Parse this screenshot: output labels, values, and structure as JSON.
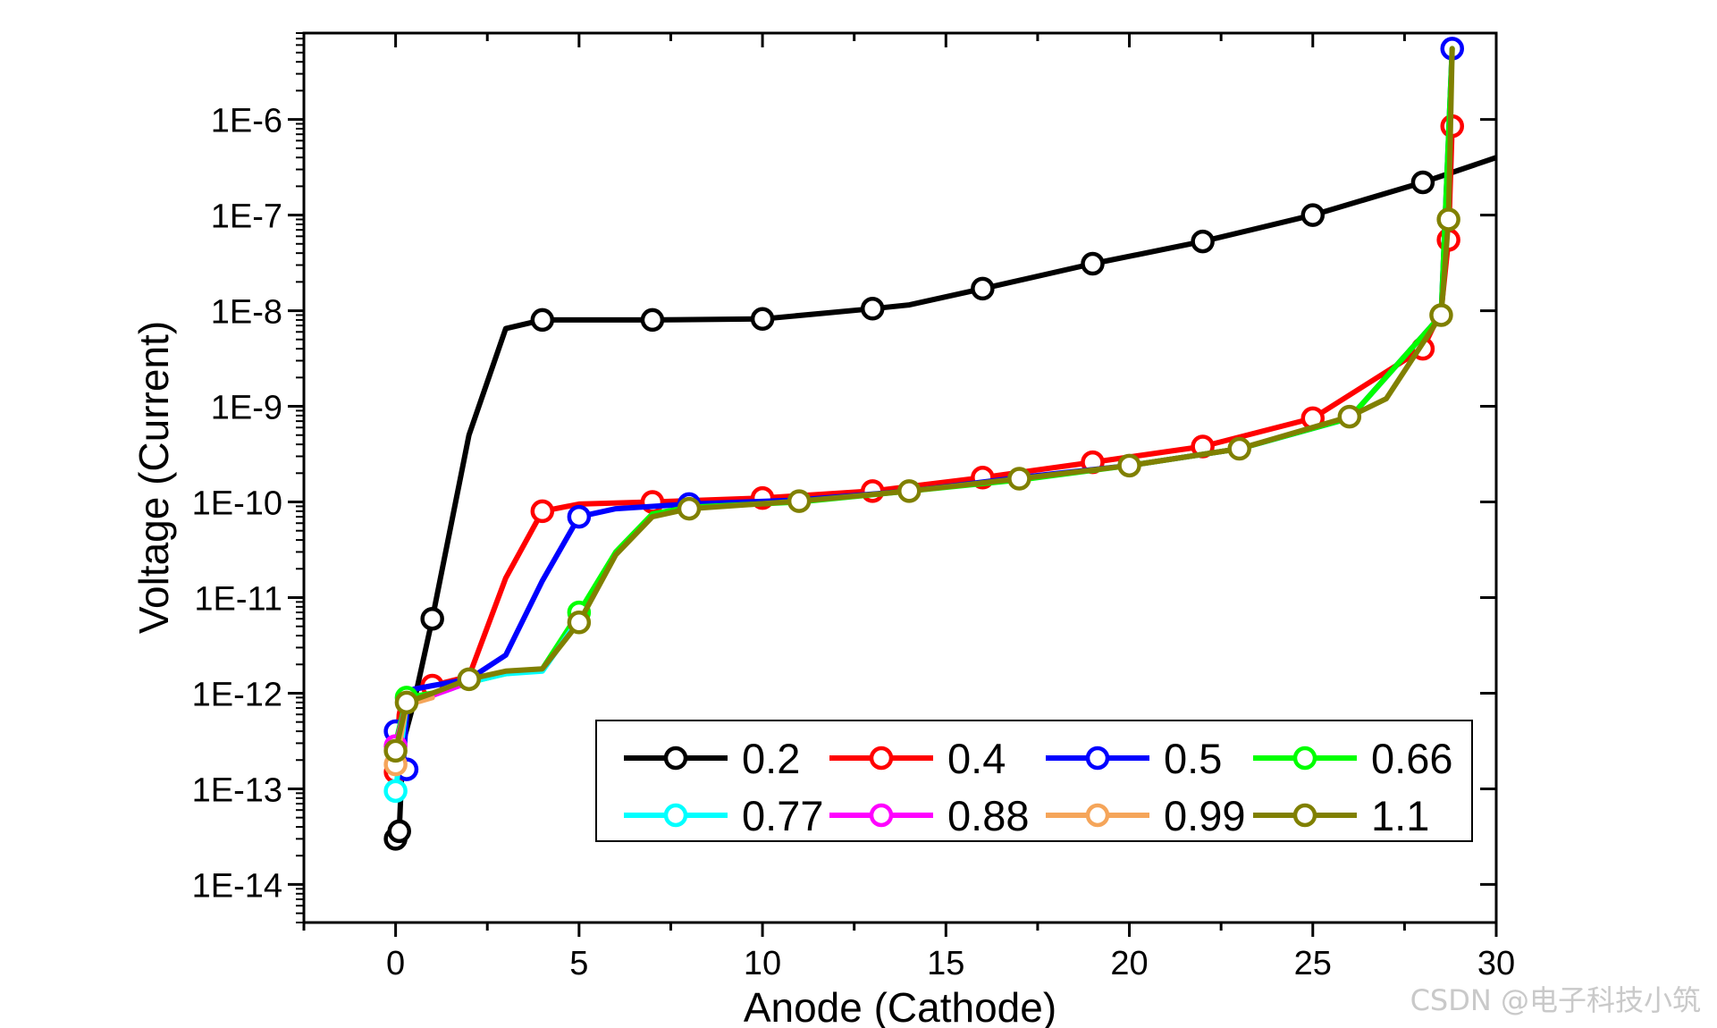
{
  "watermark": "CSDN @电子科技小筑",
  "chart_data": {
    "type": "line",
    "xlabel": "Anode (Cathode)",
    "ylabel": "Voltage (Current)",
    "xlim": [
      -2.5,
      30
    ],
    "ylim": [
      4e-15,
      8e-06
    ],
    "yscale": "log",
    "x_ticks": [
      0,
      5,
      10,
      15,
      20,
      25,
      30
    ],
    "x_tick_labels": [
      "0",
      "5",
      "10",
      "15",
      "20",
      "25",
      "30"
    ],
    "y_ticks": [
      1e-14,
      1e-13,
      1e-12,
      1e-11,
      1e-10,
      1e-09,
      1e-08,
      1e-07,
      1e-06
    ],
    "y_tick_labels": [
      "1E-14",
      "1E-13",
      "1E-12",
      "1E-11",
      "1E-10",
      "1E-9",
      "1E-8",
      "1E-7",
      "1E-6"
    ],
    "grid": false,
    "legend_position": "bottom-right",
    "series": [
      {
        "name": "0.2",
        "color": "#000000",
        "x": [
          0,
          0.1,
          0.2,
          0.5,
          1,
          2,
          3,
          4,
          7,
          10,
          13,
          14,
          16,
          19,
          22,
          25,
          28,
          30
        ],
        "y": [
          3e-14,
          3.6e-14,
          3e-13,
          8e-13,
          6e-12,
          5e-10,
          6.5e-09,
          8e-09,
          8e-09,
          8.2e-09,
          1.05e-08,
          1.15e-08,
          1.7e-08,
          3.1e-08,
          5.3e-08,
          1e-07,
          2.2e-07,
          4e-07
        ],
        "markers_x": [
          0,
          0.1,
          1,
          4,
          7,
          10,
          13,
          16,
          19,
          22,
          25,
          28
        ],
        "markers_y": [
          3e-14,
          3.6e-14,
          6e-12,
          8e-09,
          8e-09,
          8.2e-09,
          1.05e-08,
          1.7e-08,
          3.1e-08,
          5.3e-08,
          1e-07,
          2.2e-07
        ]
      },
      {
        "name": "0.4",
        "color": "#ff0000",
        "x": [
          0,
          0.1,
          0.2,
          0.5,
          1,
          2,
          3,
          4,
          5,
          7,
          10,
          13,
          16,
          19,
          22,
          25,
          28,
          28.5,
          28.7,
          28.8
        ],
        "y": [
          1.5e-13,
          6e-13,
          9e-13,
          1.1e-12,
          1.2e-12,
          1.5e-12,
          1.6e-11,
          8e-11,
          9.5e-11,
          1e-10,
          1.1e-10,
          1.3e-10,
          1.8e-10,
          2.6e-10,
          3.8e-10,
          7.5e-10,
          4e-09,
          1e-08,
          5.5e-08,
          8.5e-07
        ],
        "markers_x": [
          0,
          1,
          4,
          7,
          10,
          13,
          16,
          19,
          22,
          25,
          28,
          28.7,
          28.8
        ],
        "markers_y": [
          1.5e-13,
          1.2e-12,
          8e-11,
          1e-10,
          1.1e-10,
          1.3e-10,
          1.8e-10,
          2.6e-10,
          3.8e-10,
          7.5e-10,
          4e-09,
          5.5e-08,
          8.5e-07
        ]
      },
      {
        "name": "0.5",
        "color": "#0000ff",
        "x": [
          0,
          0.1,
          0.2,
          0.3,
          0.5,
          1,
          2,
          3,
          4,
          5,
          6,
          8,
          11,
          14,
          17,
          20,
          23,
          26,
          28.5,
          28.8
        ],
        "y": [
          4e-13,
          2e-13,
          1.6e-13,
          6e-13,
          1.1e-12,
          1.2e-12,
          1.4e-12,
          2.5e-12,
          1.5e-11,
          7e-11,
          8.5e-11,
          9.5e-11,
          1.05e-10,
          1.3e-10,
          1.8e-10,
          2.4e-10,
          3.6e-10,
          7.5e-10,
          9e-09,
          5.5e-06
        ],
        "markers_x": [
          0,
          0.3,
          5,
          8,
          28.8
        ],
        "markers_y": [
          4e-13,
          1.6e-13,
          7e-11,
          9.5e-11,
          5.5e-06
        ]
      },
      {
        "name": "0.66",
        "color": "#00ff00",
        "x": [
          0,
          0.3,
          1,
          2,
          3,
          4,
          5,
          6,
          7,
          8,
          11,
          14,
          17,
          20,
          23,
          26,
          28.5,
          28.8
        ],
        "y": [
          3e-13,
          9e-13,
          1e-12,
          1.3e-12,
          1.6e-12,
          1.8e-12,
          7e-12,
          3e-11,
          7.5e-11,
          8.8e-11,
          1e-10,
          1.3e-10,
          1.7e-10,
          2.4e-10,
          3.6e-10,
          7.5e-10,
          9e-09,
          5.5e-06
        ],
        "markers_x": [
          0.3,
          5
        ],
        "markers_y": [
          9e-13,
          7e-12
        ]
      },
      {
        "name": "0.77",
        "color": "#00ffff",
        "x": [
          0,
          0.3,
          1,
          2,
          3,
          4,
          5
        ],
        "y": [
          9.5e-14,
          8e-13,
          9.5e-13,
          1.3e-12,
          1.6e-12,
          1.7e-12,
          6e-12
        ],
        "markers_x": [
          0
        ],
        "markers_y": [
          9.5e-14
        ]
      },
      {
        "name": "0.88",
        "color": "#ff00ff",
        "x": [
          0,
          0.3,
          1,
          2
        ],
        "y": [
          2.8e-13,
          8e-13,
          9.5e-13,
          1.3e-12
        ],
        "markers_x": [
          0
        ],
        "markers_y": [
          2.8e-13
        ]
      },
      {
        "name": "0.99",
        "color": "#f5a55a",
        "x": [
          0,
          0.3,
          1
        ],
        "y": [
          1.8e-13,
          7.5e-13,
          9e-13
        ],
        "markers_x": [
          0
        ],
        "markers_y": [
          1.8e-13
        ]
      },
      {
        "name": "1.1",
        "color": "#808000",
        "x": [
          0,
          0.3,
          1,
          2,
          3,
          4,
          5,
          6,
          7,
          8,
          11,
          14,
          17,
          20,
          23,
          26,
          27,
          28.5,
          28.7,
          28.8
        ],
        "y": [
          2.5e-13,
          8e-13,
          1e-12,
          1.4e-12,
          1.7e-12,
          1.8e-12,
          5.5e-12,
          2.8e-11,
          7e-11,
          8.5e-11,
          1.02e-10,
          1.3e-10,
          1.75e-10,
          2.4e-10,
          3.6e-10,
          7.8e-10,
          1.2e-09,
          9e-09,
          9e-08,
          5.5e-06
        ],
        "markers_x": [
          0,
          0.3,
          2,
          5,
          8,
          11,
          14,
          17,
          20,
          23,
          26,
          28.5,
          28.7
        ],
        "markers_y": [
          2.5e-13,
          8e-13,
          1.4e-12,
          5.5e-12,
          8.5e-11,
          1.02e-10,
          1.3e-10,
          1.75e-10,
          2.4e-10,
          3.6e-10,
          7.8e-10,
          9e-09,
          9e-08
        ]
      }
    ]
  }
}
